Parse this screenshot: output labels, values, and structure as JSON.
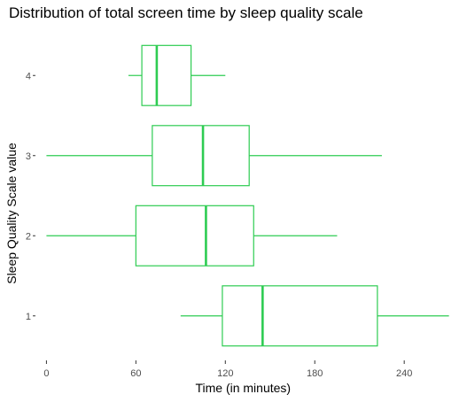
{
  "chart_data": {
    "type": "boxplot",
    "title": "Distribution of total screen time by sleep quality scale",
    "xlabel": "Time (in minutes)",
    "ylabel": "Sleep Quality Scale value",
    "x_ticks": [
      0,
      60,
      120,
      180,
      240
    ],
    "xlim": [
      -5,
      272
    ],
    "orientation": "horizontal",
    "box_color": "#2ecc52",
    "grid": false,
    "categories": [
      "1",
      "2",
      "3",
      "4"
    ],
    "boxes": [
      {
        "category": "1",
        "min": 90,
        "q1": 118,
        "median": 145,
        "q3": 222,
        "max": 270
      },
      {
        "category": "2",
        "min": 0,
        "q1": 60,
        "median": 107,
        "q3": 139,
        "max": 195
      },
      {
        "category": "3",
        "min": 0,
        "q1": 71,
        "median": 105,
        "q3": 136,
        "max": 225
      },
      {
        "category": "4",
        "min": 55,
        "q1": 64,
        "median": 74,
        "q3": 97,
        "max": 120
      }
    ]
  }
}
